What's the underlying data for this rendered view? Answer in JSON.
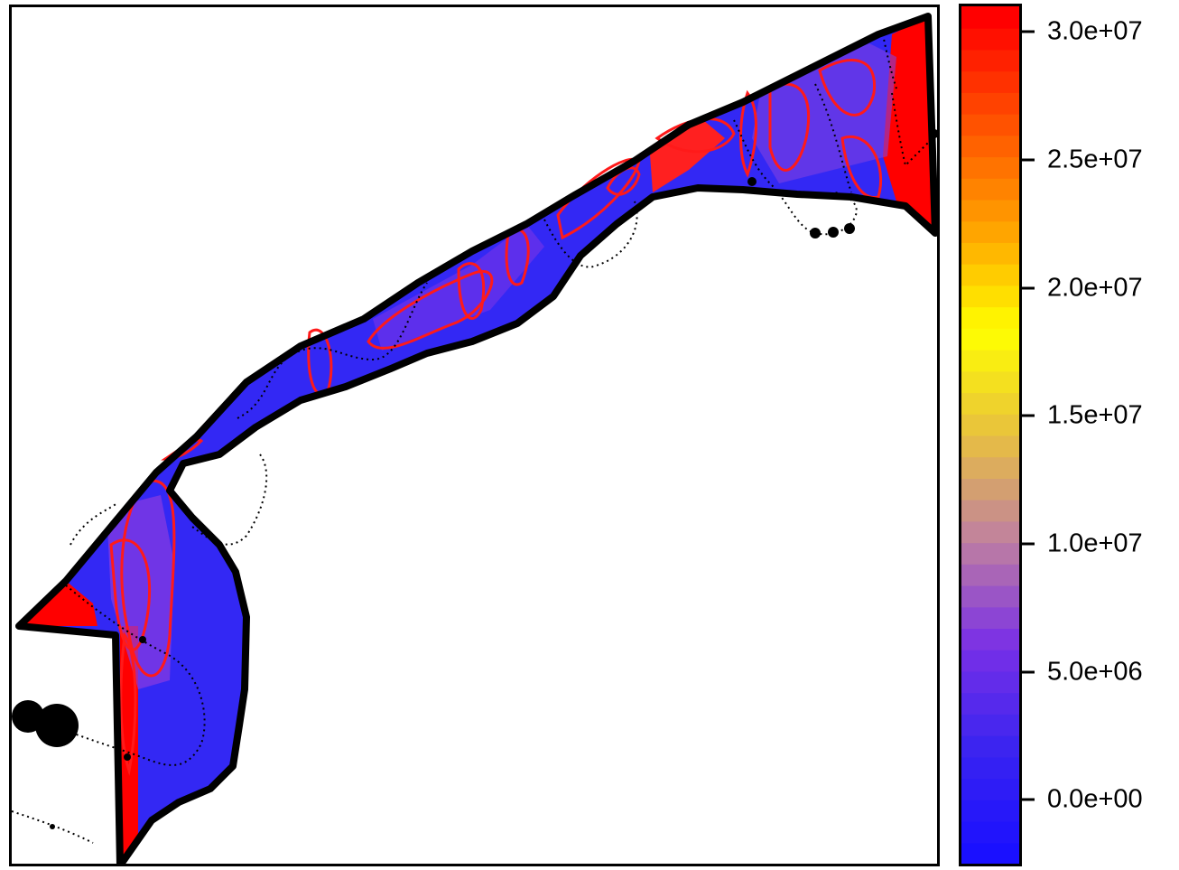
{
  "chart_data": {
    "type": "heatmap",
    "title": "",
    "xlabel": "",
    "ylabel": "",
    "colorbar": {
      "vmin": -2500000,
      "vmax": 31000000,
      "ticks": [
        {
          "value": 0,
          "label": "0.0e+00"
        },
        {
          "value": 5000000,
          "label": "5.0e+06"
        },
        {
          "value": 10000000,
          "label": "1.0e+07"
        },
        {
          "value": 15000000,
          "label": "1.5e+07"
        },
        {
          "value": 20000000,
          "label": "2.0e+07"
        },
        {
          "value": 25000000,
          "label": "2.5e+07"
        },
        {
          "value": 30000000,
          "label": "3.0e+07"
        }
      ],
      "colors": [
        "#1a10ff",
        "#3a24f0",
        "#7a30e6",
        "#c080a0",
        "#e8c040",
        "#ffff00",
        "#ffa000",
        "#ff5000",
        "#ff0000"
      ]
    },
    "field_colors": {
      "background_fill": "#3a2cf4",
      "high_value": "#ff0000",
      "contour_line": "#ff1a1a",
      "mid_value": "#8a3ae0"
    },
    "contour_line_color": "#ff1a1a",
    "boundary_color": "#000000",
    "legend": "right"
  }
}
